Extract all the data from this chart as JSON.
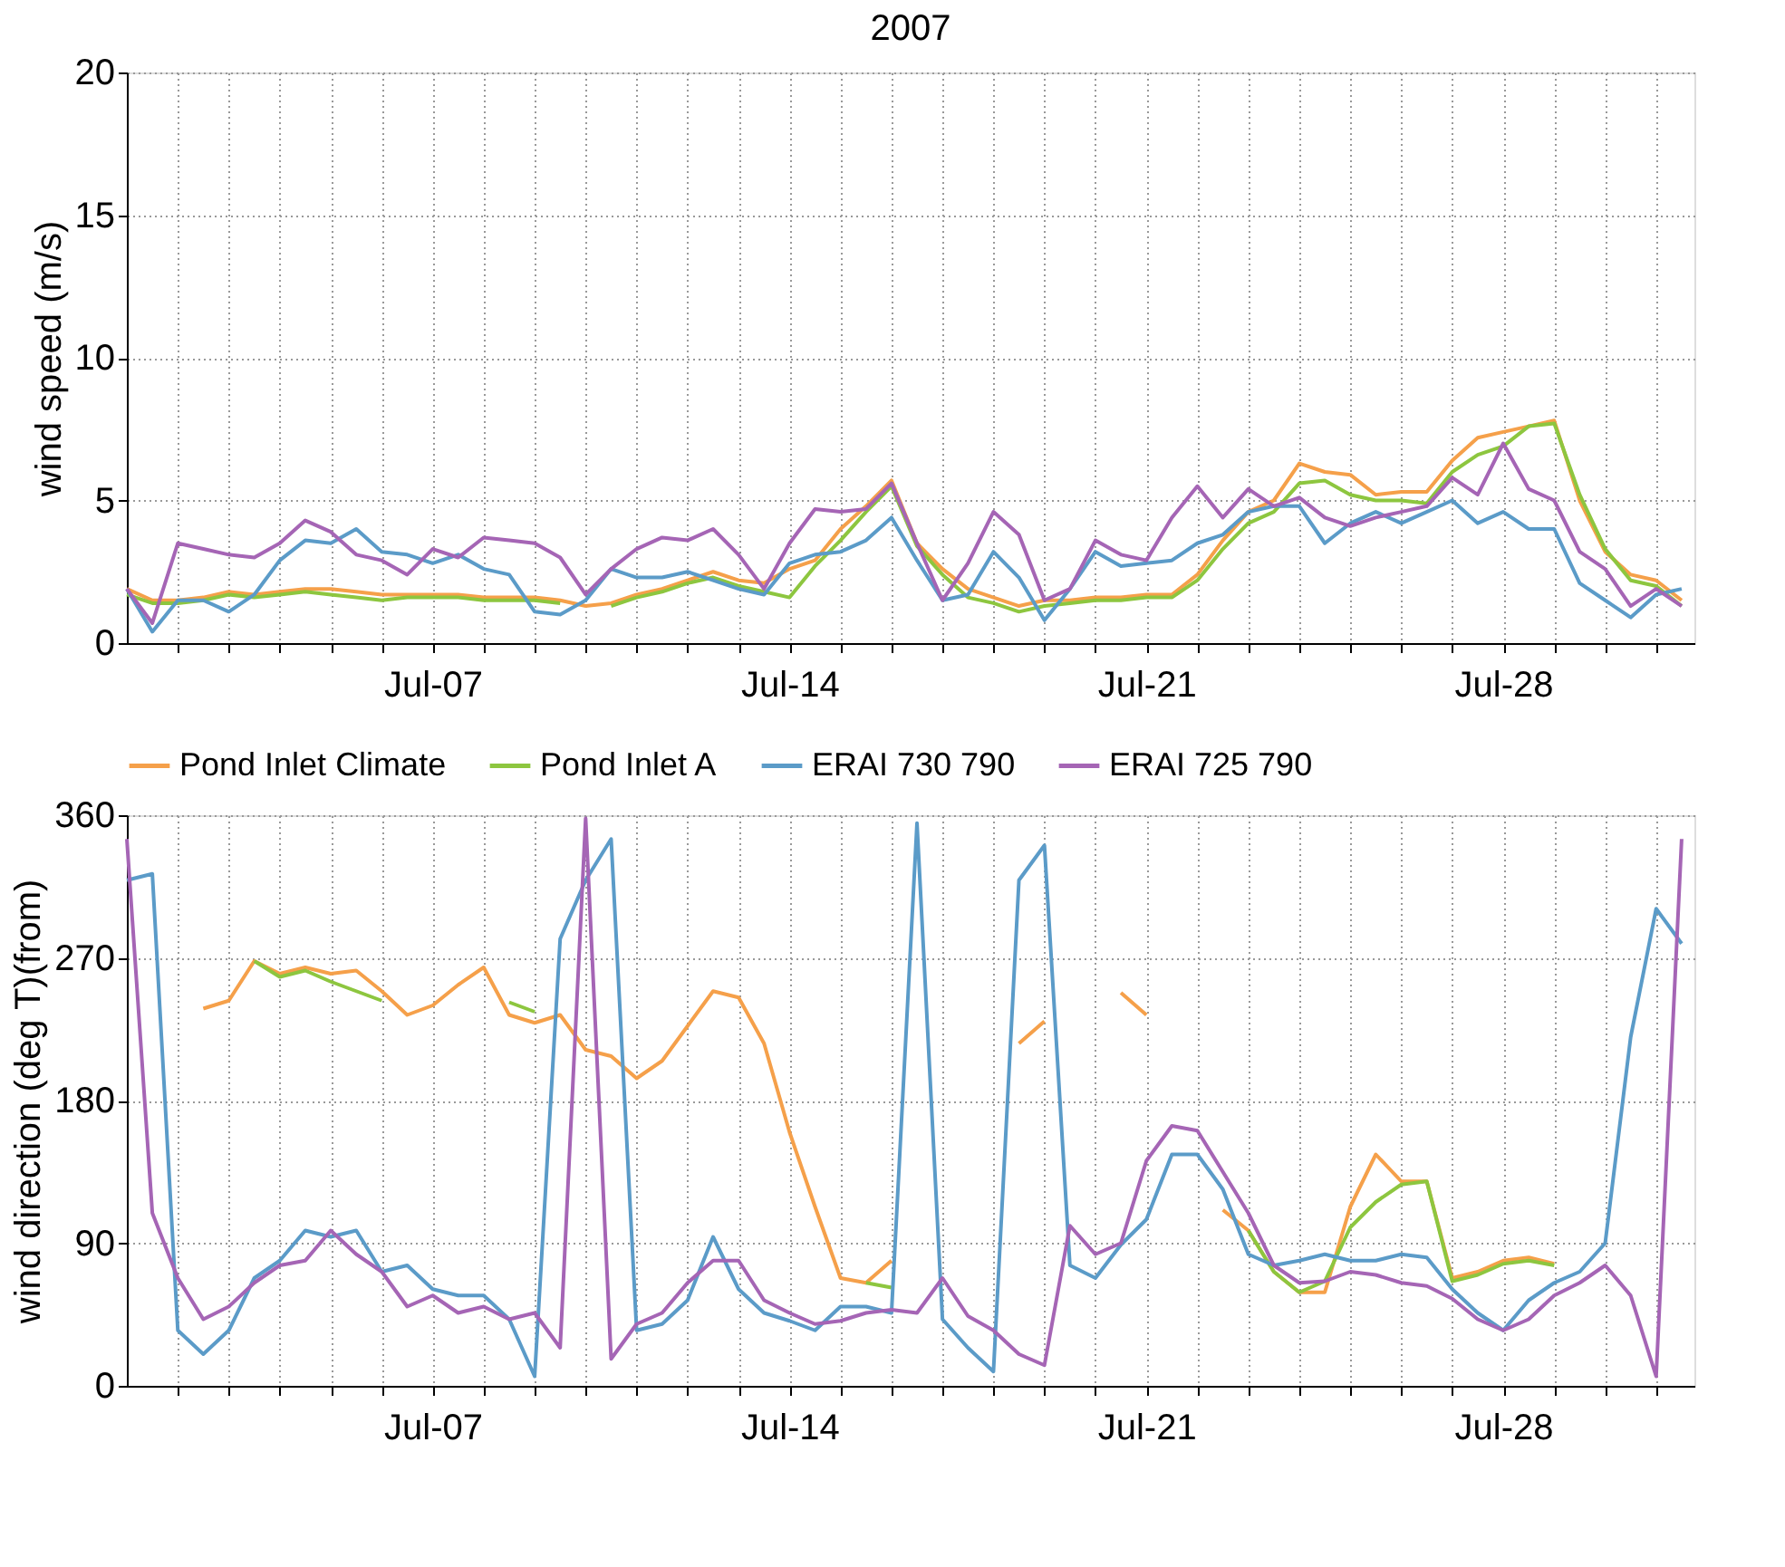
{
  "chart_data": [
    {
      "type": "line",
      "title": "2007",
      "ylabel": "wind speed (m/s)",
      "x": [
        "2007-07-01T00:00",
        "2007-07-01T12:00",
        "2007-07-02T00:00",
        "2007-07-02T12:00",
        "2007-07-03T00:00",
        "2007-07-03T12:00",
        "2007-07-04T00:00",
        "2007-07-04T12:00",
        "2007-07-05T00:00",
        "2007-07-05T12:00",
        "2007-07-06T00:00",
        "2007-07-06T12:00",
        "2007-07-07T00:00",
        "2007-07-07T12:00",
        "2007-07-08T00:00",
        "2007-07-08T12:00",
        "2007-07-09T00:00",
        "2007-07-09T12:00",
        "2007-07-10T00:00",
        "2007-07-10T12:00",
        "2007-07-11T00:00",
        "2007-07-11T12:00",
        "2007-07-12T00:00",
        "2007-07-12T12:00",
        "2007-07-13T00:00",
        "2007-07-13T12:00",
        "2007-07-14T00:00",
        "2007-07-14T12:00",
        "2007-07-15T00:00",
        "2007-07-15T12:00",
        "2007-07-16T00:00",
        "2007-07-16T12:00",
        "2007-07-17T00:00",
        "2007-07-17T12:00",
        "2007-07-18T00:00",
        "2007-07-18T12:00",
        "2007-07-19T00:00",
        "2007-07-19T12:00",
        "2007-07-20T00:00",
        "2007-07-20T12:00",
        "2007-07-21T00:00",
        "2007-07-21T12:00",
        "2007-07-22T00:00",
        "2007-07-22T12:00",
        "2007-07-23T00:00",
        "2007-07-23T12:00",
        "2007-07-24T00:00",
        "2007-07-24T12:00",
        "2007-07-25T00:00",
        "2007-07-25T12:00",
        "2007-07-26T00:00",
        "2007-07-26T12:00",
        "2007-07-27T00:00",
        "2007-07-27T12:00",
        "2007-07-28T00:00",
        "2007-07-28T12:00",
        "2007-07-29T00:00",
        "2007-07-29T12:00",
        "2007-07-30T00:00",
        "2007-07-30T12:00",
        "2007-07-31T00:00",
        "2007-07-31T12:00"
      ],
      "xlim": [
        "2007-07-01T00:00",
        "2007-07-31T18:00"
      ],
      "xticks": [
        {
          "value": "2007-07-02",
          "label": null
        },
        {
          "value": "2007-07-03",
          "label": null
        },
        {
          "value": "2007-07-04",
          "label": null
        },
        {
          "value": "2007-07-05",
          "label": null
        },
        {
          "value": "2007-07-06",
          "label": null
        },
        {
          "value": "2007-07-07",
          "label": "Jul-07"
        },
        {
          "value": "2007-07-08",
          "label": null
        },
        {
          "value": "2007-07-09",
          "label": null
        },
        {
          "value": "2007-07-10",
          "label": null
        },
        {
          "value": "2007-07-11",
          "label": null
        },
        {
          "value": "2007-07-12",
          "label": null
        },
        {
          "value": "2007-07-13",
          "label": null
        },
        {
          "value": "2007-07-14",
          "label": "Jul-14"
        },
        {
          "value": "2007-07-15",
          "label": null
        },
        {
          "value": "2007-07-16",
          "label": null
        },
        {
          "value": "2007-07-17",
          "label": null
        },
        {
          "value": "2007-07-18",
          "label": null
        },
        {
          "value": "2007-07-19",
          "label": null
        },
        {
          "value": "2007-07-20",
          "label": null
        },
        {
          "value": "2007-07-21",
          "label": "Jul-21"
        },
        {
          "value": "2007-07-22",
          "label": null
        },
        {
          "value": "2007-07-23",
          "label": null
        },
        {
          "value": "2007-07-24",
          "label": null
        },
        {
          "value": "2007-07-25",
          "label": null
        },
        {
          "value": "2007-07-26",
          "label": null
        },
        {
          "value": "2007-07-27",
          "label": null
        },
        {
          "value": "2007-07-28",
          "label": "Jul-28"
        },
        {
          "value": "2007-07-29",
          "label": null
        },
        {
          "value": "2007-07-30",
          "label": null
        },
        {
          "value": "2007-07-31",
          "label": null
        }
      ],
      "ylim": [
        0,
        20
      ],
      "yticks": [
        0,
        5,
        10,
        15,
        20
      ],
      "grid": true,
      "legend": false,
      "series": [
        {
          "color": "#f5a04a",
          "values": [
            1.9,
            1.5,
            1.5,
            1.6,
            1.8,
            1.7,
            1.8,
            1.9,
            1.9,
            1.8,
            1.7,
            1.7,
            1.7,
            1.7,
            1.6,
            1.6,
            1.6,
            1.5,
            1.3,
            1.4,
            1.7,
            1.9,
            2.2,
            2.5,
            2.2,
            2.1,
            2.6,
            2.9,
            4.0,
            4.8,
            5.7,
            3.5,
            2.6,
            1.9,
            1.6,
            1.3,
            1.5,
            1.5,
            1.6,
            1.6,
            1.7,
            1.7,
            2.4,
            3.6,
            4.6,
            5.0,
            6.3,
            6.0,
            5.9,
            5.2,
            5.3,
            5.3,
            6.4,
            7.2,
            7.4,
            7.6,
            7.8,
            5.0,
            3.2,
            2.4,
            2.2,
            1.5
          ]
        },
        {
          "color": "#8dc63f",
          "values": [
            1.7,
            1.4,
            1.4,
            1.5,
            1.7,
            1.6,
            1.7,
            1.8,
            1.7,
            1.6,
            1.5,
            1.6,
            1.6,
            1.6,
            1.5,
            1.5,
            1.5,
            1.4,
            null,
            1.3,
            1.6,
            1.8,
            2.1,
            2.3,
            2.0,
            1.8,
            1.6,
            2.7,
            3.6,
            4.6,
            5.5,
            3.4,
            2.4,
            1.6,
            1.4,
            1.1,
            1.3,
            1.4,
            1.5,
            1.5,
            1.6,
            1.6,
            2.2,
            3.3,
            4.2,
            4.6,
            5.6,
            5.7,
            5.2,
            5.0,
            5.0,
            4.9,
            6.0,
            6.6,
            6.9,
            7.6,
            7.7,
            5.2,
            3.3,
            2.2,
            2.0,
            1.3
          ]
        },
        {
          "color": "#5b9bc8",
          "values": [
            1.9,
            0.4,
            1.5,
            1.5,
            1.1,
            1.7,
            2.9,
            3.6,
            3.5,
            4.0,
            3.2,
            3.1,
            2.8,
            3.1,
            2.6,
            2.4,
            1.1,
            1.0,
            1.5,
            2.6,
            2.3,
            2.3,
            2.5,
            2.2,
            1.9,
            1.7,
            2.8,
            3.1,
            3.2,
            3.6,
            4.4,
            2.9,
            1.5,
            1.7,
            3.2,
            2.3,
            0.8,
            1.9,
            3.2,
            2.7,
            2.8,
            2.9,
            3.5,
            3.8,
            4.6,
            4.8,
            4.8,
            3.5,
            4.2,
            4.6,
            4.2,
            4.6,
            5.0,
            4.2,
            4.6,
            4.0,
            4.0,
            2.1,
            1.5,
            0.9,
            1.7,
            1.9
          ]
        },
        {
          "color": "#a565b5",
          "values": [
            1.9,
            0.7,
            3.5,
            3.3,
            3.1,
            3.0,
            3.5,
            4.3,
            3.9,
            3.1,
            2.9,
            2.4,
            3.3,
            3.0,
            3.7,
            3.6,
            3.5,
            3.0,
            1.7,
            2.6,
            3.3,
            3.7,
            3.6,
            4.0,
            3.1,
            1.9,
            3.5,
            4.7,
            4.6,
            4.7,
            5.6,
            3.5,
            1.5,
            2.8,
            4.6,
            3.8,
            1.5,
            1.9,
            3.6,
            3.1,
            2.9,
            4.4,
            5.5,
            4.4,
            5.4,
            4.8,
            5.1,
            4.4,
            4.1,
            4.4,
            4.6,
            4.8,
            5.8,
            5.2,
            7.0,
            5.4,
            5.0,
            3.2,
            2.6,
            1.3,
            1.9,
            1.3
          ]
        }
      ]
    },
    {
      "type": "line",
      "ylabel": "wind direction (deg T)(from)",
      "x": [
        "2007-07-01T00:00",
        "2007-07-01T12:00",
        "2007-07-02T00:00",
        "2007-07-02T12:00",
        "2007-07-03T00:00",
        "2007-07-03T12:00",
        "2007-07-04T00:00",
        "2007-07-04T12:00",
        "2007-07-05T00:00",
        "2007-07-05T12:00",
        "2007-07-06T00:00",
        "2007-07-06T12:00",
        "2007-07-07T00:00",
        "2007-07-07T12:00",
        "2007-07-08T00:00",
        "2007-07-08T12:00",
        "2007-07-09T00:00",
        "2007-07-09T12:00",
        "2007-07-10T00:00",
        "2007-07-10T12:00",
        "2007-07-11T00:00",
        "2007-07-11T12:00",
        "2007-07-12T00:00",
        "2007-07-12T12:00",
        "2007-07-13T00:00",
        "2007-07-13T12:00",
        "2007-07-14T00:00",
        "2007-07-14T12:00",
        "2007-07-15T00:00",
        "2007-07-15T12:00",
        "2007-07-16T00:00",
        "2007-07-16T12:00",
        "2007-07-17T00:00",
        "2007-07-17T12:00",
        "2007-07-18T00:00",
        "2007-07-18T12:00",
        "2007-07-19T00:00",
        "2007-07-19T12:00",
        "2007-07-20T00:00",
        "2007-07-20T12:00",
        "2007-07-21T00:00",
        "2007-07-21T12:00",
        "2007-07-22T00:00",
        "2007-07-22T12:00",
        "2007-07-23T00:00",
        "2007-07-23T12:00",
        "2007-07-24T00:00",
        "2007-07-24T12:00",
        "2007-07-25T00:00",
        "2007-07-25T12:00",
        "2007-07-26T00:00",
        "2007-07-26T12:00",
        "2007-07-27T00:00",
        "2007-07-27T12:00",
        "2007-07-28T00:00",
        "2007-07-28T12:00",
        "2007-07-29T00:00",
        "2007-07-29T12:00",
        "2007-07-30T00:00",
        "2007-07-30T12:00",
        "2007-07-31T00:00",
        "2007-07-31T12:00"
      ],
      "xlim": [
        "2007-07-01T00:00",
        "2007-07-31T18:00"
      ],
      "xticks": [
        {
          "value": "2007-07-02",
          "label": null
        },
        {
          "value": "2007-07-03",
          "label": null
        },
        {
          "value": "2007-07-04",
          "label": null
        },
        {
          "value": "2007-07-05",
          "label": null
        },
        {
          "value": "2007-07-06",
          "label": null
        },
        {
          "value": "2007-07-07",
          "label": "Jul-07"
        },
        {
          "value": "2007-07-08",
          "label": null
        },
        {
          "value": "2007-07-09",
          "label": null
        },
        {
          "value": "2007-07-10",
          "label": null
        },
        {
          "value": "2007-07-11",
          "label": null
        },
        {
          "value": "2007-07-12",
          "label": null
        },
        {
          "value": "2007-07-13",
          "label": null
        },
        {
          "value": "2007-07-14",
          "label": "Jul-14"
        },
        {
          "value": "2007-07-15",
          "label": null
        },
        {
          "value": "2007-07-16",
          "label": null
        },
        {
          "value": "2007-07-17",
          "label": null
        },
        {
          "value": "2007-07-18",
          "label": null
        },
        {
          "value": "2007-07-19",
          "label": null
        },
        {
          "value": "2007-07-20",
          "label": null
        },
        {
          "value": "2007-07-21",
          "label": "Jul-21"
        },
        {
          "value": "2007-07-22",
          "label": null
        },
        {
          "value": "2007-07-23",
          "label": null
        },
        {
          "value": "2007-07-24",
          "label": null
        },
        {
          "value": "2007-07-25",
          "label": null
        },
        {
          "value": "2007-07-26",
          "label": null
        },
        {
          "value": "2007-07-27",
          "label": null
        },
        {
          "value": "2007-07-28",
          "label": "Jul-28"
        },
        {
          "value": "2007-07-29",
          "label": null
        },
        {
          "value": "2007-07-30",
          "label": null
        },
        {
          "value": "2007-07-31",
          "label": null
        }
      ],
      "ylim": [
        0,
        360
      ],
      "yticks": [
        0,
        90,
        180,
        270,
        360
      ],
      "grid": true,
      "legend": "top",
      "series": [
        {
          "name": "Pond Inlet Climate",
          "color": "#f5a04a",
          "values": [
            null,
            null,
            null,
            238,
            243,
            268,
            260,
            264,
            260,
            262,
            249,
            234,
            240,
            253,
            264,
            234,
            229,
            234,
            212,
            208,
            194,
            205,
            227,
            249,
            245,
            216,
            160,
            113,
            68,
            65,
            79,
            null,
            null,
            null,
            null,
            216,
            230,
            null,
            null,
            248,
            234,
            null,
            null,
            111,
            98,
            72,
            59,
            59,
            113,
            146,
            129,
            129,
            68,
            72,
            79,
            81,
            77,
            null,
            null,
            null,
            null,
            null
          ]
        },
        {
          "name": "Pond Inlet A",
          "color": "#8dc63f",
          "values": [
            null,
            null,
            null,
            null,
            null,
            268,
            258,
            262,
            255,
            249,
            243,
            null,
            null,
            null,
            null,
            242,
            236,
            null,
            null,
            null,
            null,
            null,
            null,
            null,
            null,
            null,
            null,
            null,
            null,
            65,
            62,
            null,
            null,
            null,
            null,
            null,
            null,
            null,
            null,
            null,
            null,
            null,
            null,
            null,
            98,
            72,
            59,
            66,
            100,
            116,
            127,
            129,
            66,
            70,
            77,
            79,
            76,
            null,
            null,
            null,
            null,
            null
          ]
        },
        {
          "name": "ERAI 730 790",
          "color": "#5b9bc8",
          "values": [
            319,
            323,
            35,
            20,
            35,
            68,
            79,
            98,
            94,
            98,
            72,
            76,
            61,
            57,
            57,
            42,
            6,
            282,
            319,
            345,
            35,
            39,
            54,
            94,
            61,
            46,
            41,
            35,
            50,
            50,
            46,
            355,
            42,
            24,
            9,
            319,
            341,
            76,
            68,
            89,
            105,
            146,
            146,
            124,
            83,
            76,
            79,
            83,
            79,
            79,
            83,
            81,
            61,
            46,
            35,
            54,
            65,
            72,
            90,
            220,
            301,
            279
          ]
        },
        {
          "name": "ERAI 725 790",
          "color": "#a565b5",
          "values": [
            345,
            109,
            68,
            42,
            50,
            65,
            76,
            79,
            98,
            83,
            72,
            50,
            57,
            46,
            50,
            42,
            46,
            24,
            358,
            17,
            39,
            46,
            65,
            79,
            79,
            54,
            46,
            39,
            41,
            46,
            48,
            46,
            68,
            44,
            35,
            20,
            13,
            101,
            83,
            90,
            142,
            164,
            161,
            135,
            109,
            76,
            65,
            66,
            72,
            70,
            65,
            63,
            55,
            42,
            35,
            42,
            57,
            65,
            76,
            57,
            6,
            345
          ]
        }
      ]
    }
  ]
}
